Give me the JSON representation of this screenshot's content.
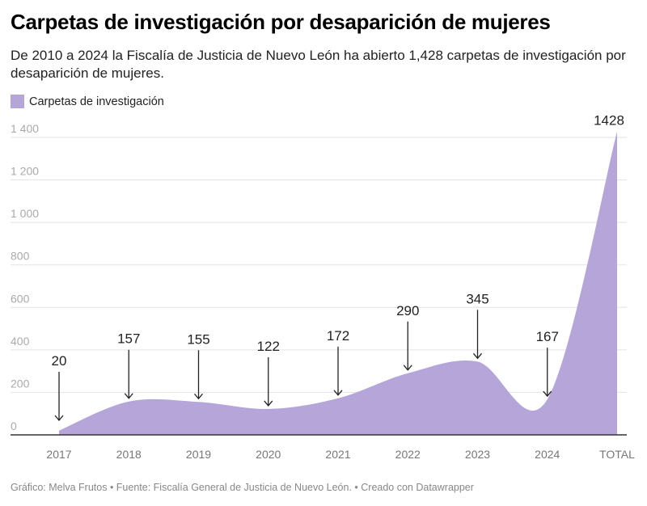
{
  "title": "Carpetas de investigación por desaparición de mujeres",
  "subtitle": "De 2010 a 2024 la Fiscalía de Justicia de Nuevo León ha abierto 1,428 carpetas de investigación por desaparición de mujeres.",
  "footer": "Gráfico: Melva Frutos • Fuente: Fiscalía General de Justicia de Nuevo León. • Creado con Datawrapper",
  "chart_data": {
    "type": "area",
    "categories": [
      "2017",
      "2018",
      "2019",
      "2020",
      "2021",
      "2022",
      "2023",
      "2024",
      "TOTAL"
    ],
    "series": [
      {
        "name": "Carpetas de investigación",
        "values": [
          20,
          157,
          155,
          122,
          172,
          290,
          345,
          167,
          1428
        ]
      }
    ],
    "annotations": [
      "20",
      "157",
      "155",
      "122",
      "172",
      "290",
      "345",
      "167",
      "1428"
    ],
    "ylim": [
      0,
      1400
    ],
    "yticks": [
      0,
      200,
      400,
      600,
      800,
      1000,
      1200,
      1400
    ],
    "ytick_labels": [
      "0",
      "200",
      "400",
      "600",
      "800",
      "1 000",
      "1 200",
      "1 400"
    ],
    "grid": true,
    "legend": "top-left",
    "color": "#b5a5d8"
  }
}
